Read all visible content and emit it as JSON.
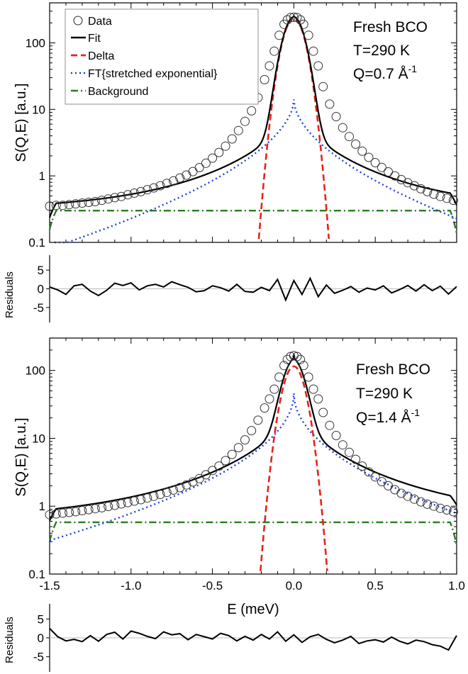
{
  "chart_data": [
    {
      "type": "line",
      "panel": "top",
      "ylabel": "S(Q,E) [a.u.]",
      "xlabel": "",
      "xlim": [
        -1.5,
        1.0
      ],
      "ylim": [
        0.1,
        400
      ],
      "yscale": "log",
      "y_ticks": [
        0.1,
        1,
        10,
        100
      ],
      "y_tick_labels": [
        "0.1",
        "1",
        "10",
        "100"
      ],
      "annotation": {
        "sample": "Fresh BCO",
        "temperature": "T=290 K",
        "q_prefix": "Q=0.7 Å",
        "q_sup": "-1"
      },
      "legend": [
        "Data",
        "Fit",
        "Delta",
        "FT{stretched exponential}",
        "Background"
      ],
      "peak_model": {
        "delta_amp": 235,
        "delta_sigma": 0.055,
        "strexp_amp": 14,
        "strexp_gamma": 0.075,
        "strexp_beta": 0.55,
        "background": 0.3
      },
      "series": [
        {
          "name": "Data",
          "x": [
            -1.5,
            -1.46,
            -1.42,
            -1.38,
            -1.34,
            -1.3,
            -1.26,
            -1.22,
            -1.18,
            -1.14,
            -1.1,
            -1.06,
            -1.02,
            -0.98,
            -0.94,
            -0.9,
            -0.86,
            -0.82,
            -0.78,
            -0.74,
            -0.7,
            -0.66,
            -0.62,
            -0.58,
            -0.54,
            -0.5,
            -0.46,
            -0.42,
            -0.38,
            -0.34,
            -0.3,
            -0.26,
            -0.22,
            -0.18,
            -0.15,
            -0.12,
            -0.09,
            -0.06,
            -0.04,
            -0.02,
            0.0,
            0.02,
            0.04,
            0.06,
            0.09,
            0.12,
            0.15,
            0.18,
            0.22,
            0.26,
            0.3,
            0.34,
            0.38,
            0.42,
            0.46,
            0.5,
            0.54,
            0.58,
            0.62,
            0.66,
            0.7,
            0.74,
            0.78,
            0.82,
            0.86,
            0.9,
            0.94,
            0.98
          ],
          "y": [
            0.35,
            0.36,
            0.36,
            0.37,
            0.38,
            0.39,
            0.4,
            0.41,
            0.43,
            0.45,
            0.47,
            0.49,
            0.52,
            0.55,
            0.58,
            0.62,
            0.66,
            0.71,
            0.77,
            0.84,
            0.93,
            1.03,
            1.16,
            1.33,
            1.55,
            1.85,
            2.25,
            2.8,
            3.6,
            4.8,
            6.6,
            9.5,
            15,
            28,
            45,
            75,
            130,
            190,
            222,
            240,
            243,
            240,
            222,
            190,
            130,
            75,
            45,
            22,
            12,
            7.8,
            5.3,
            3.9,
            3.0,
            2.35,
            1.9,
            1.58,
            1.34,
            1.15,
            1.0,
            0.88,
            0.79,
            0.71,
            0.64,
            0.58,
            0.53,
            0.49,
            0.46,
            0.43
          ]
        },
        {
          "name": "Fit"
        },
        {
          "name": "Delta"
        },
        {
          "name": "FT{stretched exponential}"
        },
        {
          "name": "Background"
        }
      ]
    },
    {
      "type": "line",
      "panel": "top-residuals",
      "ylabel": "Residuals",
      "xlim": [
        -1.5,
        1.0
      ],
      "ylim": [
        -9,
        9
      ],
      "y_ticks": [
        -5,
        0,
        5
      ],
      "y_tick_labels": [
        "-5",
        "0",
        "5"
      ],
      "series": [
        {
          "name": "Residuals",
          "x": [
            -1.5,
            -1.45,
            -1.4,
            -1.35,
            -1.3,
            -1.25,
            -1.2,
            -1.15,
            -1.1,
            -1.05,
            -1.0,
            -0.95,
            -0.9,
            -0.85,
            -0.8,
            -0.75,
            -0.7,
            -0.65,
            -0.6,
            -0.55,
            -0.5,
            -0.45,
            -0.4,
            -0.35,
            -0.3,
            -0.25,
            -0.2,
            -0.15,
            -0.1,
            -0.05,
            0.0,
            0.05,
            0.1,
            0.15,
            0.2,
            0.25,
            0.3,
            0.35,
            0.4,
            0.45,
            0.5,
            0.55,
            0.6,
            0.65,
            0.7,
            0.75,
            0.8,
            0.85,
            0.9,
            0.95,
            1.0
          ],
          "y": [
            0.5,
            -0.3,
            -1.5,
            0.8,
            1.2,
            -0.6,
            -1.8,
            -0.4,
            1.5,
            0.9,
            1.6,
            -0.3,
            0.8,
            1.2,
            0.5,
            1.9,
            1.1,
            0.4,
            -0.8,
            -0.5,
            0.8,
            0.3,
            -0.6,
            1.2,
            -0.7,
            -0.9,
            0.4,
            -0.5,
            2.5,
            -3.0,
            2.2,
            -1.5,
            2.8,
            -2.1,
            1.0,
            -1.2,
            -0.4,
            0.6,
            -0.9,
            0.2,
            -0.3,
            0.8,
            -1.1,
            -0.2,
            0.9,
            -0.6,
            1.1,
            -0.5,
            0.7,
            -1.4,
            0.6
          ]
        }
      ]
    },
    {
      "type": "line",
      "panel": "bottom",
      "ylabel": "S(Q,E) [a.u.]",
      "xlabel": "E (meV)",
      "xlim": [
        -1.5,
        1.0
      ],
      "ylim": [
        0.1,
        300
      ],
      "yscale": "log",
      "x_ticks": [
        -1.5,
        -1.0,
        -0.5,
        0.0,
        0.5,
        1.0
      ],
      "x_tick_labels": [
        "-1.5",
        "-1.0",
        "-0.5",
        "0.0",
        "0.5",
        "1.0"
      ],
      "y_ticks": [
        0.1,
        1,
        10,
        100
      ],
      "y_tick_labels": [
        "0.1",
        "1",
        "10",
        "100"
      ],
      "annotation": {
        "sample": "Fresh BCO",
        "temperature": "T=290 K",
        "q_prefix": "Q=1.4 Å",
        "q_sup": "-1"
      },
      "peak_model": {
        "delta_amp": 115,
        "delta_sigma": 0.055,
        "strexp_amp": 46,
        "strexp_gamma": 0.06,
        "strexp_beta": 0.5,
        "background": 0.58
      },
      "series": [
        {
          "name": "Data",
          "x": [
            -1.5,
            -1.46,
            -1.42,
            -1.38,
            -1.34,
            -1.3,
            -1.26,
            -1.22,
            -1.18,
            -1.14,
            -1.1,
            -1.06,
            -1.02,
            -0.98,
            -0.94,
            -0.9,
            -0.86,
            -0.82,
            -0.78,
            -0.74,
            -0.7,
            -0.66,
            -0.62,
            -0.58,
            -0.54,
            -0.5,
            -0.46,
            -0.42,
            -0.38,
            -0.34,
            -0.3,
            -0.26,
            -0.22,
            -0.18,
            -0.15,
            -0.12,
            -0.09,
            -0.06,
            -0.04,
            -0.02,
            0.0,
            0.02,
            0.04,
            0.06,
            0.09,
            0.12,
            0.15,
            0.18,
            0.22,
            0.26,
            0.3,
            0.34,
            0.38,
            0.42,
            0.46,
            0.5,
            0.54,
            0.58,
            0.62,
            0.66,
            0.7,
            0.74,
            0.78,
            0.82,
            0.86,
            0.9,
            0.94,
            0.98
          ],
          "y": [
            0.75,
            0.77,
            0.79,
            0.81,
            0.83,
            0.86,
            0.89,
            0.92,
            0.95,
            0.99,
            1.03,
            1.08,
            1.13,
            1.19,
            1.25,
            1.32,
            1.4,
            1.49,
            1.6,
            1.73,
            1.88,
            2.06,
            2.28,
            2.55,
            2.9,
            3.35,
            3.9,
            4.7,
            5.8,
            7.3,
            9.5,
            13,
            18.5,
            28,
            38,
            53,
            80,
            118,
            145,
            160,
            165,
            160,
            145,
            118,
            80,
            53,
            38,
            24,
            15.5,
            11,
            8,
            6.2,
            4.9,
            3.9,
            3.2,
            2.7,
            2.3,
            2.0,
            1.75,
            1.55,
            1.4,
            1.27,
            1.16,
            1.07,
            1.0,
            0.93,
            0.88,
            0.83
          ]
        },
        {
          "name": "Fit"
        },
        {
          "name": "Delta"
        },
        {
          "name": "FT{stretched exponential}"
        },
        {
          "name": "Background"
        }
      ]
    },
    {
      "type": "line",
      "panel": "bottom-residuals",
      "ylabel": "Residuals",
      "xlim": [
        -1.5,
        1.0
      ],
      "ylim": [
        -9,
        9
      ],
      "y_ticks": [
        -5,
        0,
        5
      ],
      "y_tick_labels": [
        "-5",
        "0",
        "5"
      ],
      "series": [
        {
          "name": "Residuals",
          "x": [
            -1.5,
            -1.45,
            -1.4,
            -1.35,
            -1.3,
            -1.25,
            -1.2,
            -1.15,
            -1.1,
            -1.05,
            -1.0,
            -0.95,
            -0.9,
            -0.85,
            -0.8,
            -0.75,
            -0.7,
            -0.65,
            -0.6,
            -0.55,
            -0.5,
            -0.45,
            -0.4,
            -0.35,
            -0.3,
            -0.25,
            -0.2,
            -0.15,
            -0.1,
            -0.05,
            0.0,
            0.05,
            0.1,
            0.15,
            0.2,
            0.25,
            0.3,
            0.35,
            0.4,
            0.45,
            0.5,
            0.55,
            0.6,
            0.65,
            0.7,
            0.75,
            0.8,
            0.85,
            0.9,
            0.95,
            1.0
          ],
          "y": [
            2.5,
            0.3,
            -0.8,
            -0.4,
            -1.0,
            0.6,
            -0.9,
            0.9,
            1.5,
            -0.3,
            1.8,
            1.2,
            0.4,
            -0.2,
            1.6,
            0.8,
            1.1,
            -0.5,
            0.9,
            0.3,
            -0.3,
            1.2,
            0.6,
            -0.8,
            0.4,
            -0.6,
            0.9,
            -0.3,
            1.6,
            -0.9,
            0.8,
            -1.2,
            0.3,
            0.9,
            -0.4,
            -1.3,
            -0.6,
            0.4,
            -1.5,
            -0.8,
            -0.5,
            -1.1,
            0.2,
            -0.9,
            -1.6,
            -0.6,
            -1.0,
            -1.8,
            -2.2,
            -3.2,
            0.6
          ]
        }
      ]
    }
  ]
}
